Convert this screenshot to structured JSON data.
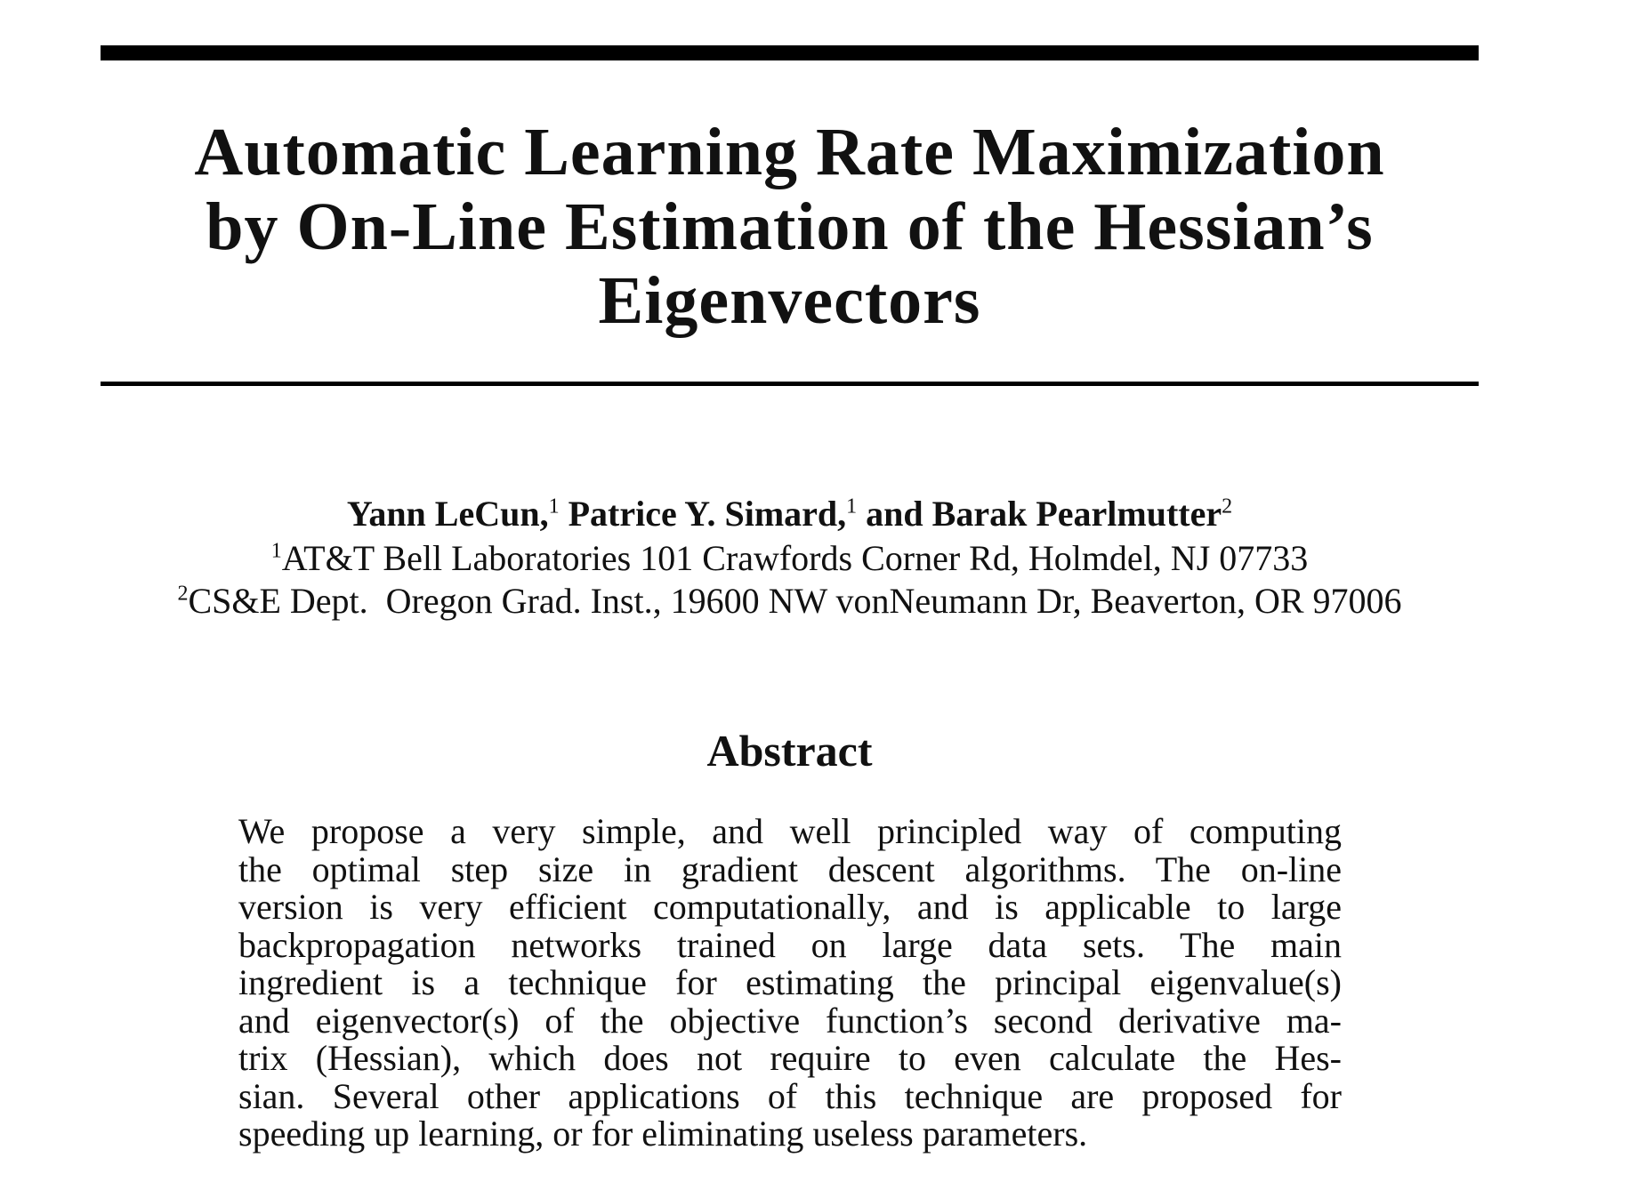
{
  "title": {
    "lines": [
      "Automatic Learning Rate Maximization",
      "by On-Line Estimation of the Hessian’s",
      "Eigenvectors"
    ]
  },
  "authors": [
    {
      "name": "Yann LeCun,",
      "mark": "1"
    },
    {
      "name": "Patrice Y. Simard,",
      "mark": "1"
    },
    {
      "name": "and Barak Pearlmutter",
      "mark": "2"
    }
  ],
  "affiliations": [
    {
      "mark": "1",
      "text": "AT&T Bell Laboratories 101 Crawfords Corner Rd, Holmdel, NJ 07733"
    },
    {
      "mark": "2",
      "text": "CS&E Dept.  Oregon Grad. Inst., 19600 NW vonNeumann Dr, Beaverton, OR 97006"
    }
  ],
  "abstract": {
    "heading": "Abstract",
    "lines": [
      "We propose a very simple, and well principled way of computing",
      "the optimal step size in gradient descent algorithms. The on-line",
      "version is very efficient computationally, and is applicable to large",
      "backpropagation networks trained on large data sets.  The main",
      "ingredient is a technique for estimating the principal eigenvalue(s)",
      "and eigenvector(s) of the objective function’s second derivative ma-",
      "trix (Hessian), which does not require to even calculate the Hes-",
      "sian. Several other applications of this technique are proposed for",
      "speeding up learning, or for eliminating useless parameters."
    ]
  }
}
